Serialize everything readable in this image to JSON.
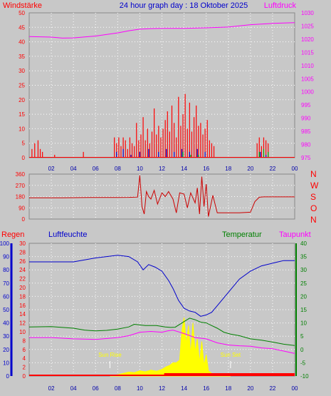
{
  "header": {
    "left_label": "Windstärke",
    "title": "24 hour graph day : 18 Oktober 2025",
    "right_label": "Luftdruck"
  },
  "bottom_labels": {
    "regen": "Regen",
    "luftfeuchte": "Luftfeuchte",
    "temperatur": "Temperatur",
    "taupunkt": "Taupunkt"
  },
  "annotations": {
    "sun_rise": "Sun Rise",
    "sun_set": "Sun Set"
  },
  "colors": {
    "background": "#c8c8c8",
    "wind": "#ff0000",
    "gust_blue": "#0000cc",
    "gust_green": "#00aa00",
    "pressure": "#ff00ff",
    "humidity": "#0000cc",
    "temperature": "#008000",
    "dewpoint": "#ff00ff",
    "solar": "#ffff00",
    "rain": "#ff0000",
    "winddir": "#cc0000"
  },
  "chart_data": [
    {
      "type": "bar",
      "name": "wind",
      "title": "24 hour graph day : 18 Oktober 2025",
      "xlim": [
        0,
        24
      ],
      "xticks": [
        "02",
        "04",
        "06",
        "08",
        "10",
        "12",
        "14",
        "16",
        "18",
        "20",
        "22",
        "00"
      ],
      "y_left": {
        "label": "Windstärke",
        "ticks": [
          "0",
          "5",
          "10",
          "15",
          "20",
          "25",
          "30",
          "35",
          "40",
          "45",
          "50"
        ],
        "ylim": [
          0,
          50
        ]
      },
      "y_right": {
        "label": "Luftdruck",
        "ticks": [
          "975",
          "980",
          "985",
          "990",
          "995",
          "1000",
          "1005",
          "1010",
          "1015",
          "1020",
          "1025",
          "1030"
        ],
        "ylim": [
          975,
          1030
        ]
      },
      "series": [
        {
          "name": "Windstärke",
          "kind": "bars",
          "x": [
            0.25,
            0.5,
            0.8,
            1.0,
            1.2,
            2.3,
            4.9,
            7.7,
            7.9,
            8.1,
            8.3,
            8.5,
            8.7,
            8.9,
            9.1,
            9.3,
            9.5,
            9.7,
            9.9,
            10.1,
            10.3,
            10.5,
            10.7,
            10.9,
            11.1,
            11.3,
            11.5,
            11.7,
            11.9,
            12.1,
            12.3,
            12.5,
            12.7,
            12.9,
            13.1,
            13.3,
            13.5,
            13.7,
            13.9,
            14.1,
            14.3,
            14.5,
            14.7,
            14.9,
            15.1,
            15.3,
            15.5,
            15.7,
            15.9,
            16.1,
            16.3,
            16.5,
            16.7,
            20.6,
            20.8,
            21.0,
            21.2,
            21.4,
            21.6
          ],
          "values": [
            3,
            5,
            6,
            3,
            2,
            1,
            2,
            7,
            5,
            7,
            4,
            7,
            6,
            3,
            7,
            5,
            4,
            12,
            6,
            8,
            14,
            6,
            10,
            5,
            9,
            17,
            8,
            11,
            7,
            10,
            13,
            16,
            9,
            18,
            12,
            7,
            21,
            11,
            15,
            22,
            10,
            19,
            9,
            14,
            18,
            11,
            12,
            8,
            10,
            13,
            6,
            5,
            4,
            5,
            7,
            4,
            7,
            6,
            5
          ]
        },
        {
          "name": "Gust blue",
          "kind": "bars",
          "x": [
            7.9,
            8.5,
            9.2,
            10.0,
            10.8,
            11.7,
            12.4,
            13.1,
            13.8,
            14.5,
            15.2,
            15.9,
            20.9,
            21.4
          ],
          "values": [
            2,
            3,
            1,
            2,
            3,
            2,
            3,
            2,
            3,
            2,
            3,
            2,
            2,
            1
          ]
        },
        {
          "name": "Gust green",
          "kind": "bars",
          "x": [
            13.9,
            14.6,
            15.3,
            20.8,
            21.2,
            21.6
          ],
          "values": [
            2,
            1,
            1,
            2,
            3,
            2
          ]
        },
        {
          "name": "Luftdruck",
          "kind": "line",
          "axis": "right",
          "x": [
            0,
            2,
            3,
            4,
            6,
            8,
            9,
            10,
            11,
            12,
            14,
            16,
            18,
            20,
            22,
            24
          ],
          "values": [
            1021,
            1020.8,
            1020.4,
            1020.5,
            1021.2,
            1022.4,
            1023.2,
            1023.8,
            1024,
            1024.1,
            1024.1,
            1024.3,
            1024.6,
            1025.5,
            1026,
            1026.3
          ]
        }
      ]
    },
    {
      "type": "line",
      "name": "wind_direction",
      "xlim": [
        0,
        24
      ],
      "y_left": {
        "ticks": [
          "0",
          "90",
          "180",
          "270",
          "360"
        ],
        "ylim": [
          0,
          360
        ]
      },
      "y_right": {
        "ticks": [
          "N",
          "W",
          "S",
          "O",
          "N"
        ]
      },
      "series": [
        {
          "name": "Windrichtung",
          "x": [
            0,
            3,
            6,
            8,
            9,
            9.8,
            10.0,
            10.2,
            10.4,
            10.6,
            10.8,
            11.0,
            11.3,
            11.6,
            12.0,
            12.3,
            12.6,
            13.0,
            13.3,
            13.6,
            14.0,
            14.3,
            14.6,
            15.0,
            15.2,
            15.4,
            15.6,
            15.8,
            16.0,
            16.2,
            16.6,
            17,
            19,
            20,
            20.4,
            20.8,
            21.2,
            24
          ],
          "values": [
            170,
            170,
            173,
            173,
            174,
            176,
            350,
            100,
            40,
            220,
            180,
            160,
            230,
            120,
            210,
            180,
            220,
            160,
            50,
            210,
            200,
            90,
            210,
            130,
            250,
            40,
            340,
            100,
            280,
            20,
            190,
            50,
            50,
            55,
            140,
            175,
            178,
            178
          ]
        }
      ]
    },
    {
      "type": "line",
      "name": "rain_humidity_temperature",
      "xlim": [
        0,
        24
      ],
      "y_regen": {
        "label": "Regen",
        "ticks": [
          "0",
          "10",
          "20",
          "30",
          "40",
          "50",
          "60",
          "70",
          "80",
          "90",
          "100"
        ],
        "ylim": [
          0,
          100
        ]
      },
      "y_humidity": {
        "label": "Luftfeuchte",
        "ticks": [
          "0",
          "2",
          "4",
          "6",
          "8",
          "10",
          "12",
          "14",
          "16",
          "18",
          "20",
          "22",
          "24",
          "26",
          "28",
          "30"
        ],
        "ylim": [
          0,
          30
        ]
      },
      "y_temp": {
        "label": "Temperatur",
        "ticks": [
          "-10",
          "-5",
          "0",
          "5",
          "10",
          "15",
          "20",
          "25",
          "30",
          "35",
          "40"
        ],
        "ylim": [
          -10,
          40
        ]
      },
      "series": [
        {
          "name": "Luftfeuchte",
          "axis": "regen",
          "x": [
            0,
            2,
            4,
            6,
            7,
            8,
            9,
            9.8,
            10.3,
            10.8,
            11.4,
            12,
            12.6,
            13,
            13.5,
            14,
            14.5,
            15,
            15.5,
            16,
            16.5,
            17,
            17.6,
            18.2,
            19,
            20,
            21,
            22,
            22.5,
            23,
            24
          ],
          "values": [
            86,
            86,
            86,
            89,
            90,
            91,
            90,
            86,
            80,
            84,
            82,
            79,
            72,
            66,
            57,
            51,
            49,
            48,
            45,
            46,
            48,
            53,
            59,
            65,
            73,
            79,
            83,
            85,
            86,
            87,
            87
          ]
        },
        {
          "name": "Temperatur",
          "axis": "temp",
          "x": [
            0,
            2,
            4,
            5,
            6,
            7,
            8,
            9,
            9.5,
            10.5,
            11.5,
            12.3,
            12.8,
            13.2,
            14,
            14.5,
            15,
            15.5,
            16,
            16.5,
            17,
            17.6,
            18.2,
            19,
            20,
            21,
            22,
            23,
            24
          ],
          "values": [
            8.5,
            8.6,
            8,
            7.3,
            7,
            7.2,
            7.7,
            8.5,
            9.5,
            9,
            9,
            8.5,
            8.3,
            8.4,
            10.5,
            11.8,
            11.2,
            10.3,
            10,
            9,
            8,
            6.5,
            5.8,
            5.2,
            4,
            3.5,
            2.8,
            2,
            1.5
          ]
        },
        {
          "name": "Taupunkt",
          "axis": "temp",
          "x": [
            0,
            2,
            4,
            6,
            8,
            9,
            10,
            11,
            12,
            12.5,
            13,
            14,
            15,
            16,
            17,
            18,
            19,
            20,
            21,
            22,
            23,
            24
          ],
          "values": [
            4.5,
            4.5,
            4,
            3.8,
            4.5,
            5.2,
            6.5,
            6.8,
            6.5,
            7,
            7.3,
            6,
            4.5,
            4,
            2.5,
            1.7,
            1.4,
            1.2,
            0.6,
            0.3,
            -0.6,
            -1.5
          ]
        },
        {
          "name": "Sonne",
          "axis": "temp",
          "x": [
            7.3,
            8,
            8.5,
            9,
            9.5,
            10,
            10.5,
            11,
            11.5,
            12,
            12.4,
            12.7,
            13,
            13.3,
            13.6,
            13.8,
            14,
            14.2,
            14.4,
            14.6,
            14.8,
            15,
            15.2,
            15.4,
            15.6,
            15.8,
            16,
            16.2,
            16.5,
            17,
            17.5,
            18.2
          ],
          "values": [
            -10,
            -9.5,
            -9,
            -8.5,
            -8.7,
            -8,
            -8.4,
            -7.8,
            -8.2,
            -7.5,
            -6.5,
            -6,
            -5,
            -5,
            -4,
            7,
            12,
            2,
            9,
            -2,
            10,
            -1,
            4,
            -5,
            3,
            -6,
            -2,
            -8,
            -9,
            -9.5,
            -9.8,
            -10
          ]
        },
        {
          "name": "Regen",
          "axis": "regen",
          "kind": "bars",
          "x": [
            7.3,
            10.8,
            12,
            24
          ],
          "values": [
            1,
            1,
            2,
            2
          ]
        }
      ],
      "markers": {
        "sun_rise_x": 7.3,
        "sun_set_x": 18.2
      }
    }
  ]
}
